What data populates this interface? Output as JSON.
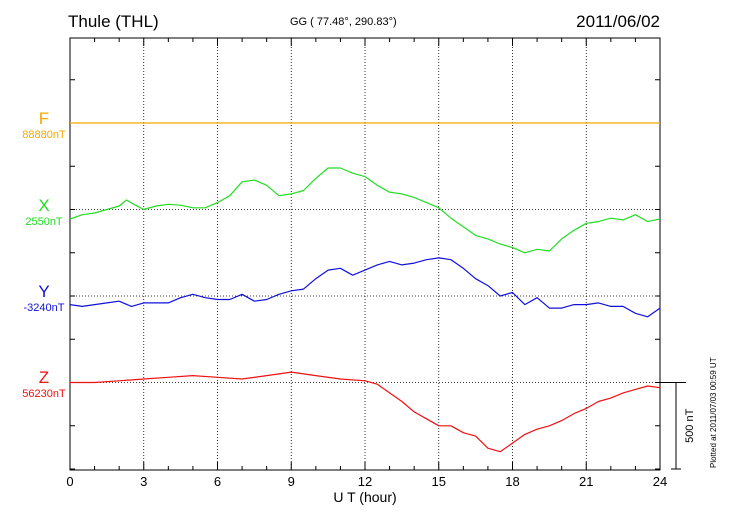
{
  "header": {
    "station": "Thule (THL)",
    "coords": "GG ( 77.48°, 290.83°)",
    "date": "2011/06/02"
  },
  "footnote": "Plotted at 2011/07/03 00:59 UT",
  "chart_data": {
    "type": "line",
    "title": "",
    "xlabel": "U T (hour)",
    "xlim": [
      0,
      24
    ],
    "xticks": [
      0,
      3,
      6,
      9,
      12,
      15,
      18,
      21,
      24
    ],
    "grid": true,
    "scale_bar": {
      "label": "500 nT",
      "value_nT": 500
    },
    "series": [
      {
        "name": "F",
        "baseline_label": "88880nT",
        "color": "#f5a800",
        "offset": 0,
        "x": [
          0,
          24
        ],
        "y": [
          0,
          0
        ]
      },
      {
        "name": "X",
        "baseline_label": "2550nT",
        "color": "#22dd22",
        "offset": 1,
        "x": [
          0,
          0.5,
          1,
          1.5,
          2,
          2.3,
          2.6,
          3,
          3.5,
          4,
          4.5,
          5,
          5.5,
          6,
          6.5,
          7,
          7.5,
          8,
          8.5,
          9,
          9.5,
          10,
          10.5,
          11,
          11.5,
          12,
          12.5,
          13,
          13.5,
          14,
          14.5,
          15,
          15.5,
          16,
          16.5,
          17,
          17.5,
          18,
          18.5,
          19,
          19.5,
          20,
          20.5,
          21,
          21.5,
          22,
          22.5,
          23,
          23.5,
          24
        ],
        "y": [
          -55,
          -30,
          -20,
          0,
          20,
          55,
          30,
          0,
          20,
          30,
          25,
          10,
          10,
          40,
          80,
          160,
          170,
          140,
          80,
          90,
          110,
          180,
          240,
          240,
          210,
          190,
          140,
          100,
          90,
          70,
          40,
          10,
          -50,
          -100,
          -150,
          -170,
          -200,
          -220,
          -250,
          -230,
          -240,
          -170,
          -120,
          -80,
          -70,
          -50,
          -60,
          -30,
          -70,
          -55
        ]
      },
      {
        "name": "Y",
        "baseline_label": "-3240nT",
        "color": "#1010dd",
        "offset": 2,
        "x": [
          0,
          0.5,
          1,
          1.5,
          2,
          2.5,
          3,
          3.5,
          4,
          4.5,
          5,
          5.5,
          6,
          6.5,
          7,
          7.5,
          8,
          8.5,
          9,
          9.5,
          10,
          10.5,
          11,
          11.5,
          12,
          12.5,
          13,
          13.5,
          14,
          14.5,
          15,
          15.5,
          16,
          16.5,
          17,
          17.5,
          18,
          18.5,
          19,
          19.5,
          20,
          20.5,
          21,
          21.5,
          22,
          22.5,
          23,
          23.5,
          24
        ],
        "y": [
          -50,
          -60,
          -50,
          -40,
          -30,
          -60,
          -40,
          -40,
          -40,
          -10,
          10,
          -10,
          -20,
          -20,
          10,
          -30,
          -20,
          10,
          30,
          40,
          100,
          150,
          160,
          120,
          150,
          180,
          200,
          180,
          190,
          210,
          220,
          210,
          160,
          100,
          60,
          0,
          20,
          -50,
          -10,
          -70,
          -70,
          -50,
          -50,
          -40,
          -60,
          -60,
          -100,
          -120,
          -70
        ]
      },
      {
        "name": "Z",
        "baseline_label": "56230nT",
        "color": "#ee1111",
        "offset": 3,
        "x": [
          0,
          1,
          2,
          3,
          4,
          5,
          6,
          7,
          8,
          9,
          10,
          11,
          12,
          12.5,
          13,
          13.5,
          14,
          14.5,
          15,
          15.5,
          16,
          16.5,
          17,
          17.5,
          18,
          18.5,
          19,
          19.5,
          20,
          20.5,
          21,
          21.5,
          22,
          22.5,
          23,
          23.5,
          24
        ],
        "y": [
          0,
          0,
          10,
          20,
          30,
          40,
          30,
          20,
          40,
          60,
          40,
          20,
          10,
          -10,
          -60,
          -110,
          -170,
          -210,
          -250,
          -250,
          -290,
          -310,
          -380,
          -400,
          -350,
          -300,
          -270,
          -250,
          -220,
          -180,
          -150,
          -110,
          -90,
          -60,
          -40,
          -20,
          -30
        ]
      }
    ]
  }
}
